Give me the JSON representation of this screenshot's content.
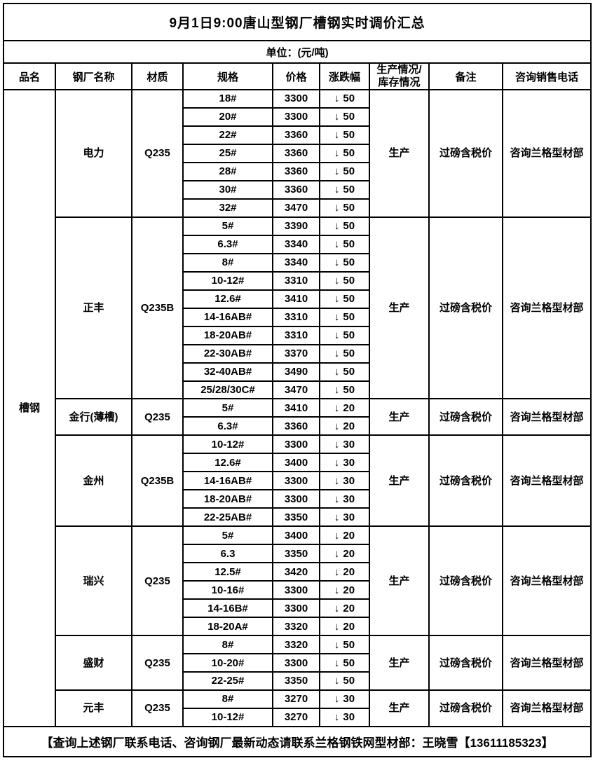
{
  "title": "9月1日9:00唐山型钢厂槽钢实时调价汇总",
  "unit": "单位：(元/吨)",
  "icons": {
    "arrow_down": "↓"
  },
  "colors": {
    "border": "#000000",
    "text": "#000000",
    "background": "#ffffff"
  },
  "table": {
    "columns": [
      "品名",
      "钢厂名称",
      "材质",
      "规格",
      "价格",
      "涨跌幅",
      "生产情况/\n库存情况",
      "备注",
      "咨询销售电话"
    ],
    "category": "槽钢",
    "factories": [
      {
        "name": "电力",
        "material": "Q235",
        "production": "生产",
        "remark": "过磅含税价",
        "phone": "咨询兰格型材部",
        "specs": [
          {
            "spec": "18#",
            "price": "3300",
            "direction": "down",
            "change": "50"
          },
          {
            "spec": "20#",
            "price": "3300",
            "direction": "down",
            "change": "50"
          },
          {
            "spec": "22#",
            "price": "3360",
            "direction": "down",
            "change": "50"
          },
          {
            "spec": "25#",
            "price": "3360",
            "direction": "down",
            "change": "50"
          },
          {
            "spec": "28#",
            "price": "3360",
            "direction": "down",
            "change": "50"
          },
          {
            "spec": "30#",
            "price": "3360",
            "direction": "down",
            "change": "50"
          },
          {
            "spec": "32#",
            "price": "3470",
            "direction": "down",
            "change": "50"
          }
        ]
      },
      {
        "name": "正丰",
        "material": "Q235B",
        "production": "生产",
        "remark": "过磅含税价",
        "phone": "咨询兰格型材部",
        "specs": [
          {
            "spec": "5#",
            "price": "3390",
            "direction": "down",
            "change": "50"
          },
          {
            "spec": "6.3#",
            "price": "3340",
            "direction": "down",
            "change": "50"
          },
          {
            "spec": "8#",
            "price": "3340",
            "direction": "down",
            "change": "50"
          },
          {
            "spec": "10-12#",
            "price": "3310",
            "direction": "down",
            "change": "50"
          },
          {
            "spec": "12.6#",
            "price": "3410",
            "direction": "down",
            "change": "50"
          },
          {
            "spec": "14-16AB#",
            "price": "3310",
            "direction": "down",
            "change": "50"
          },
          {
            "spec": "18-20AB#",
            "price": "3310",
            "direction": "down",
            "change": "50"
          },
          {
            "spec": "22-30AB#",
            "price": "3370",
            "direction": "down",
            "change": "50"
          },
          {
            "spec": "32-40AB#",
            "price": "3490",
            "direction": "down",
            "change": "50"
          },
          {
            "spec": "25/28/30C#",
            "price": "3470",
            "direction": "down",
            "change": "50"
          }
        ]
      },
      {
        "name": "金行(薄槽)",
        "material": "Q235",
        "production": "生产",
        "remark": "过磅含税价",
        "phone": "咨询兰格型材部",
        "specs": [
          {
            "spec": "5#",
            "price": "3410",
            "direction": "down",
            "change": "20"
          },
          {
            "spec": "6.3#",
            "price": "3360",
            "direction": "down",
            "change": "20"
          }
        ]
      },
      {
        "name": "金州",
        "material": "Q235B",
        "production": "生产",
        "remark": "过磅含税价",
        "phone": "咨询兰格型材部",
        "specs": [
          {
            "spec": "10-12#",
            "price": "3300",
            "direction": "down",
            "change": "30"
          },
          {
            "spec": "12.6#",
            "price": "3400",
            "direction": "down",
            "change": "30"
          },
          {
            "spec": "14-16AB#",
            "price": "3300",
            "direction": "down",
            "change": "30"
          },
          {
            "spec": "18-20AB#",
            "price": "3300",
            "direction": "down",
            "change": "30"
          },
          {
            "spec": "22-25AB#",
            "price": "3350",
            "direction": "down",
            "change": "30"
          }
        ]
      },
      {
        "name": "瑞兴",
        "material": "Q235",
        "production": "生产",
        "remark": "过磅含税价",
        "phone": "咨询兰格型材部",
        "specs": [
          {
            "spec": "5#",
            "price": "3400",
            "direction": "down",
            "change": "20"
          },
          {
            "spec": "6.3",
            "price": "3350",
            "direction": "down",
            "change": "20"
          },
          {
            "spec": "12.5#",
            "price": "3420",
            "direction": "down",
            "change": "20"
          },
          {
            "spec": "10-16#",
            "price": "3300",
            "direction": "down",
            "change": "20"
          },
          {
            "spec": "14-16B#",
            "price": "3300",
            "direction": "down",
            "change": "20"
          },
          {
            "spec": "18-20A#",
            "price": "3320",
            "direction": "down",
            "change": "20"
          }
        ]
      },
      {
        "name": "盛财",
        "material": "Q235",
        "production": "生产",
        "remark": "过磅含税价",
        "phone": "咨询兰格型材部",
        "specs": [
          {
            "spec": "8#",
            "price": "3320",
            "direction": "down",
            "change": "50"
          },
          {
            "spec": "10-20#",
            "price": "3300",
            "direction": "down",
            "change": "50"
          },
          {
            "spec": "22-25#",
            "price": "3350",
            "direction": "down",
            "change": "50"
          }
        ]
      },
      {
        "name": "元丰",
        "material": "Q235",
        "production": "生产",
        "remark": "过磅含税价",
        "phone": "咨询兰格型材部",
        "specs": [
          {
            "spec": "8#",
            "price": "3270",
            "direction": "down",
            "change": "30"
          },
          {
            "spec": "10-12#",
            "price": "3270",
            "direction": "down",
            "change": "30"
          }
        ]
      }
    ]
  },
  "footer": "【查询上述钢厂联系电话、咨询钢厂最新动态请联系兰格钢铁网型材部：王晓雪【13611185323】"
}
